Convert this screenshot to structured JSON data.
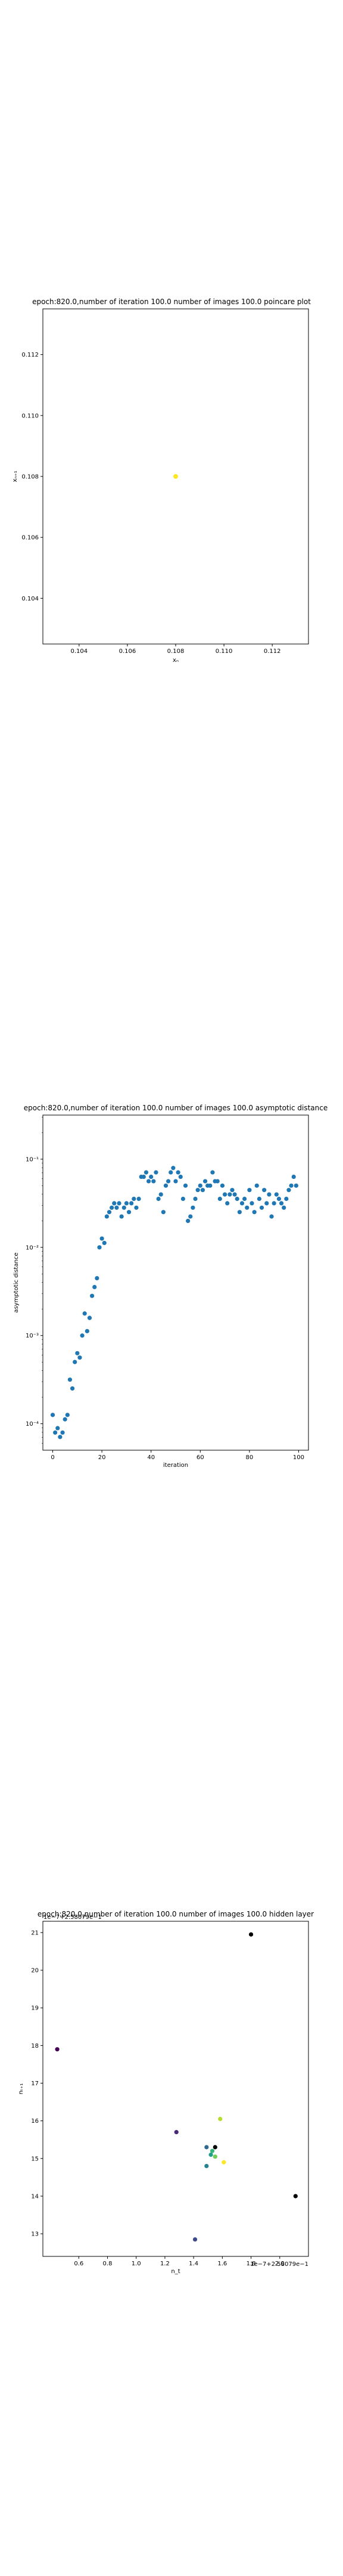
{
  "chart_data": [
    {
      "type": "scatter",
      "title": "epoch:820.0,number of iteration 100.0 number of images 100.0 poincare plot",
      "xlabel": "xₙ",
      "ylabel": "xₙ₊₁",
      "xlim": [
        0.1025,
        0.1135
      ],
      "ylim": [
        0.1025,
        0.1135
      ],
      "xticks": [
        0.104,
        0.106,
        0.108,
        0.11,
        0.112
      ],
      "yticks": [
        0.104,
        0.106,
        0.108,
        0.11,
        0.112
      ],
      "tick_labels": [
        "0.104",
        "0.106",
        "0.108",
        "0.110",
        "0.112"
      ],
      "points": [
        {
          "x": 0.108,
          "y": 0.108
        }
      ],
      "color": "#fde725"
    },
    {
      "type": "scatter",
      "title": "epoch:820.0,number of iteration 100.0  number of images 100.0 asymptotic distance",
      "xlabel": "iteration",
      "ylabel": "asymptotic distance",
      "yscale": "log",
      "xlim": [
        -4,
        104
      ],
      "ylim": [
        -4.3,
        -0.5
      ],
      "xticks": [
        0,
        20,
        40,
        60,
        80,
        100
      ],
      "yticks": [
        {
          "exp": -4,
          "label": "10⁻⁴"
        },
        {
          "exp": -3,
          "label": "10⁻³"
        },
        {
          "exp": -2,
          "label": "10⁻²"
        },
        {
          "exp": -1,
          "label": "10⁻¹"
        }
      ],
      "x": [
        0,
        1,
        2,
        3,
        4,
        5,
        6,
        7,
        8,
        9,
        10,
        11,
        12,
        13,
        14,
        15,
        16,
        17,
        18,
        19,
        20,
        21,
        22,
        23,
        24,
        25,
        26,
        27,
        28,
        29,
        30,
        31,
        32,
        33,
        34,
        35,
        36,
        37,
        38,
        39,
        40,
        41,
        42,
        43,
        44,
        45,
        46,
        47,
        48,
        49,
        50,
        51,
        52,
        53,
        54,
        55,
        56,
        57,
        58,
        59,
        60,
        61,
        62,
        63,
        64,
        65,
        66,
        67,
        68,
        69,
        70,
        71,
        72,
        73,
        74,
        75,
        76,
        77,
        78,
        79,
        80,
        81,
        82,
        83,
        84,
        85,
        86,
        87,
        88,
        89,
        90,
        91,
        92,
        93,
        94,
        95,
        96,
        97,
        98,
        99
      ],
      "log10_y": [
        -3.9,
        -4.1,
        -4.05,
        -4.15,
        -4.1,
        -3.95,
        -3.9,
        -3.5,
        -3.6,
        -3.3,
        -3.2,
        -3.25,
        -3.0,
        -2.75,
        -2.95,
        -2.8,
        -2.55,
        -2.45,
        -2.35,
        -2.0,
        -1.9,
        -1.95,
        -1.65,
        -1.6,
        -1.55,
        -1.5,
        -1.55,
        -1.5,
        -1.65,
        -1.55,
        -1.5,
        -1.6,
        -1.5,
        -1.45,
        -1.55,
        -1.45,
        -1.2,
        -1.2,
        -1.15,
        -1.25,
        -1.2,
        -1.25,
        -1.15,
        -1.45,
        -1.4,
        -1.6,
        -1.3,
        -1.25,
        -1.15,
        -1.1,
        -1.25,
        -1.15,
        -1.2,
        -1.45,
        -1.3,
        -1.7,
        -1.65,
        -1.55,
        -1.45,
        -1.35,
        -1.3,
        -1.35,
        -1.25,
        -1.3,
        -1.3,
        -1.15,
        -1.25,
        -1.25,
        -1.45,
        -1.3,
        -1.4,
        -1.5,
        -1.4,
        -1.35,
        -1.4,
        -1.45,
        -1.6,
        -1.5,
        -1.45,
        -1.55,
        -1.35,
        -1.5,
        -1.6,
        -1.3,
        -1.45,
        -1.55,
        -1.35,
        -1.5,
        -1.4,
        -1.65,
        -1.5,
        -1.4,
        -1.45,
        -1.5,
        -1.55,
        -1.45,
        -1.35,
        -1.3,
        -1.2,
        -1.3
      ],
      "color": "#1f77b4"
    },
    {
      "type": "scatter",
      "title": "epoch:820.0,number of iteration 100.0  number of images 100.0 hidden layer",
      "xlabel": "n_t",
      "ylabel": "nₜ₊₁",
      "x_offset_text": "1e−7+2.58079e−1",
      "y_offset_text": "1e−7+2.58079e−1",
      "xlim": [
        0.35,
        2.2
      ],
      "ylim": [
        12.4,
        21.3
      ],
      "xticks": [
        0.6,
        0.8,
        1.0,
        1.2,
        1.4,
        1.6,
        1.8,
        2.0
      ],
      "xtick_labels": [
        "0.6",
        "0.8",
        "1.0",
        "1.2",
        "1.4",
        "1.6",
        "1.8",
        "2.0"
      ],
      "yticks": [
        13,
        14,
        15,
        16,
        17,
        18,
        19,
        20,
        21
      ],
      "points": [
        {
          "x": 0.45,
          "y": 17.9,
          "color": "#440154"
        },
        {
          "x": 1.28,
          "y": 15.7,
          "color": "#482878"
        },
        {
          "x": 1.41,
          "y": 12.85,
          "color": "#3e4989"
        },
        {
          "x": 1.49,
          "y": 15.3,
          "color": "#31688e"
        },
        {
          "x": 1.49,
          "y": 14.8,
          "color": "#26828e"
        },
        {
          "x": 1.52,
          "y": 15.1,
          "color": "#1f9e89"
        },
        {
          "x": 1.53,
          "y": 15.2,
          "color": "#35b779"
        },
        {
          "x": 1.55,
          "y": 15.05,
          "color": "#6ece58"
        },
        {
          "x": 1.585,
          "y": 16.05,
          "color": "#b5de2b"
        },
        {
          "x": 1.61,
          "y": 14.9,
          "color": "#fde725"
        },
        {
          "x": 1.55,
          "y": 15.3,
          "color": "#000000"
        },
        {
          "x": 1.8,
          "y": 20.95,
          "color": "#000000"
        },
        {
          "x": 2.11,
          "y": 14.0,
          "color": "#000000"
        }
      ]
    }
  ]
}
